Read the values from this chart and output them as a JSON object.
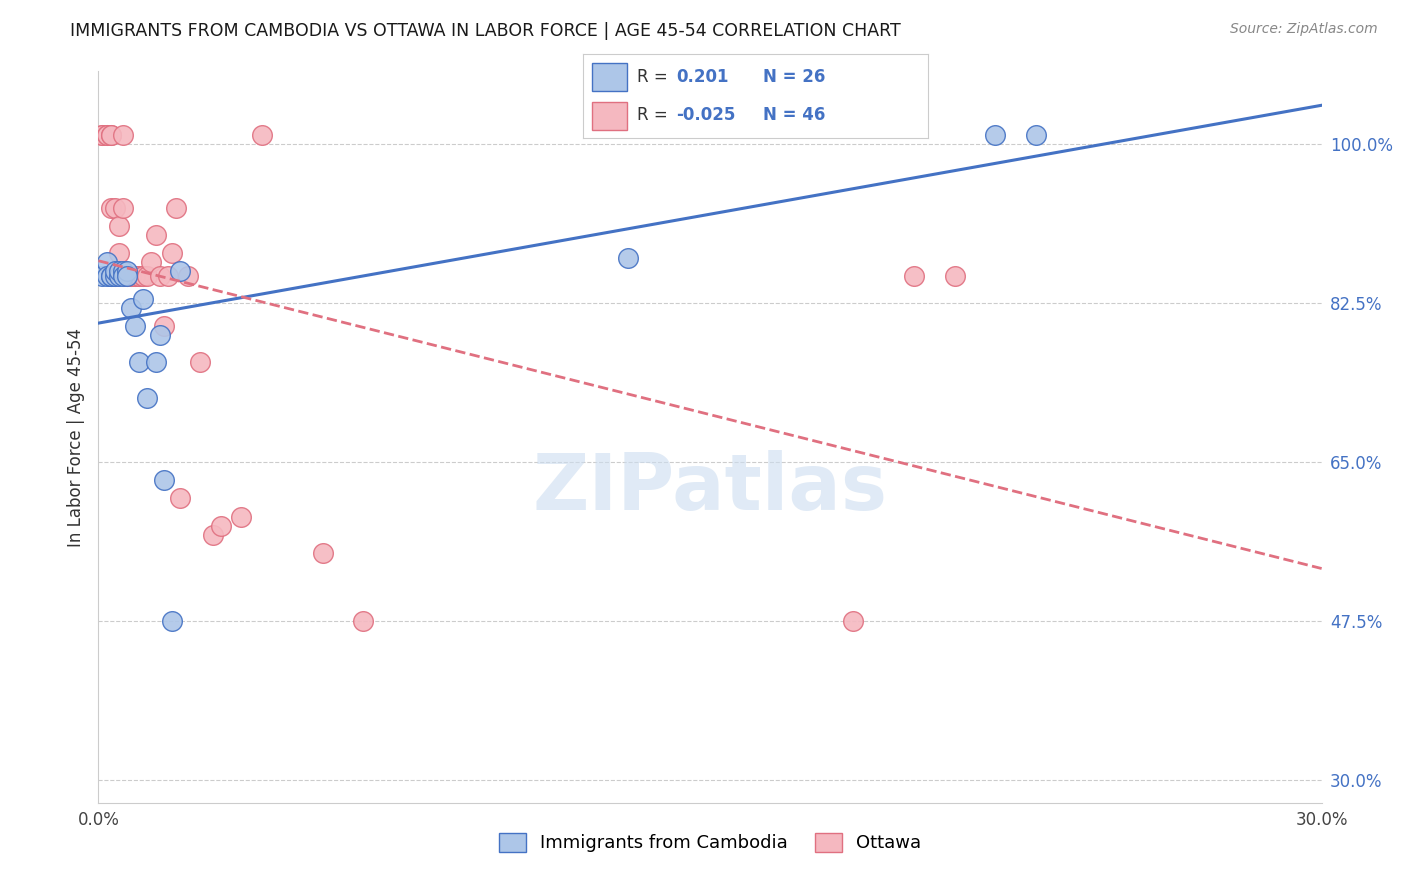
{
  "title": "IMMIGRANTS FROM CAMBODIA VS OTTAWA IN LABOR FORCE | AGE 45-54 CORRELATION CHART",
  "source": "Source: ZipAtlas.com",
  "ylabel": "In Labor Force | Age 45-54",
  "xlim": [
    0.0,
    0.3
  ],
  "ylim": [
    0.275,
    1.08
  ],
  "xticks": [
    0.0,
    0.05,
    0.1,
    0.15,
    0.2,
    0.25,
    0.3
  ],
  "xtick_labels": [
    "0.0%",
    "",
    "",
    "",
    "",
    "",
    "30.0%"
  ],
  "yticks_right": [
    0.3,
    0.475,
    0.65,
    0.825,
    1.0
  ],
  "ytick_labels_right": [
    "30.0%",
    "47.5%",
    "65.0%",
    "82.5%",
    "100.0%"
  ],
  "blue_r": "0.201",
  "blue_n": "26",
  "pink_r": "-0.025",
  "pink_n": "46",
  "blue_dot_color": "#adc6e8",
  "blue_edge_color": "#4472C4",
  "pink_dot_color": "#f5b8c0",
  "pink_edge_color": "#e07080",
  "blue_line_color": "#4472C4",
  "pink_line_color": "#e07080",
  "watermark_color": "#ddeeff",
  "watermark": "ZIPatlas",
  "legend_label_blue": "Immigrants from Cambodia",
  "legend_label_pink": "Ottawa",
  "blue_x": [
    0.001,
    0.002,
    0.002,
    0.003,
    0.003,
    0.004,
    0.004,
    0.005,
    0.005,
    0.006,
    0.006,
    0.007,
    0.007,
    0.008,
    0.009,
    0.01,
    0.011,
    0.012,
    0.014,
    0.015,
    0.016,
    0.018,
    0.02,
    0.13,
    0.22,
    0.23
  ],
  "blue_y": [
    0.855,
    0.87,
    0.855,
    0.855,
    0.855,
    0.855,
    0.86,
    0.855,
    0.86,
    0.86,
    0.855,
    0.86,
    0.855,
    0.82,
    0.8,
    0.76,
    0.83,
    0.72,
    0.76,
    0.79,
    0.63,
    0.475,
    0.86,
    0.875,
    1.01,
    1.01
  ],
  "pink_x": [
    0.001,
    0.001,
    0.002,
    0.002,
    0.003,
    0.003,
    0.003,
    0.003,
    0.004,
    0.004,
    0.004,
    0.005,
    0.005,
    0.006,
    0.006,
    0.007,
    0.007,
    0.007,
    0.008,
    0.008,
    0.009,
    0.009,
    0.01,
    0.01,
    0.011,
    0.011,
    0.012,
    0.013,
    0.014,
    0.015,
    0.016,
    0.017,
    0.018,
    0.019,
    0.02,
    0.022,
    0.025,
    0.028,
    0.03,
    0.035,
    0.04,
    0.055,
    0.065,
    0.185,
    0.2,
    0.21
  ],
  "pink_y": [
    1.01,
    1.01,
    1.01,
    1.01,
    1.01,
    1.01,
    0.93,
    0.855,
    0.93,
    0.855,
    0.855,
    0.88,
    0.91,
    1.01,
    0.93,
    0.855,
    0.855,
    0.855,
    0.855,
    0.855,
    0.855,
    0.855,
    0.855,
    0.855,
    0.855,
    0.855,
    0.855,
    0.87,
    0.9,
    0.855,
    0.8,
    0.855,
    0.88,
    0.93,
    0.61,
    0.855,
    0.76,
    0.57,
    0.58,
    0.59,
    1.01,
    0.55,
    0.475,
    0.475,
    0.855,
    0.855
  ]
}
